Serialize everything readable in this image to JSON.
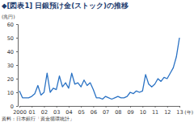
{
  "chart_data": {
    "type": "line",
    "title": "◆[図表1] 日銀預け金(ストック)の推移",
    "ylabel": "(兆円)",
    "xlabel": "(年)",
    "source": "資料：日本銀行「資金循環統計」",
    "categories": [
      "2000",
      null,
      null,
      null,
      "01",
      null,
      null,
      null,
      "02",
      null,
      null,
      null,
      "03",
      null,
      null,
      null,
      "04",
      null,
      null,
      null,
      "05",
      null,
      null,
      null,
      "06",
      null,
      null,
      null,
      "07",
      null,
      null,
      null,
      "08",
      null,
      null,
      null,
      "09",
      null,
      null,
      null,
      "10",
      null,
      null,
      null,
      "11",
      null,
      null,
      null,
      "12",
      null,
      null,
      null,
      "13"
    ],
    "values": [
      11,
      6,
      6,
      6,
      7,
      9,
      15,
      8,
      10,
      24,
      10,
      13,
      12,
      22,
      14,
      17,
      13,
      24,
      16,
      17,
      14,
      19,
      15,
      17,
      12,
      6,
      6,
      5,
      7,
      6,
      5,
      6,
      7,
      6,
      6,
      7,
      10,
      9,
      11,
      10,
      11,
      23,
      16,
      14,
      16,
      20,
      18,
      21,
      20,
      24,
      28,
      36,
      50
    ],
    "color": "#2a72c4",
    "ylim": [
      0,
      60
    ],
    "yticks": [
      0,
      10,
      20,
      30,
      40,
      50,
      60
    ],
    "grid": false
  }
}
